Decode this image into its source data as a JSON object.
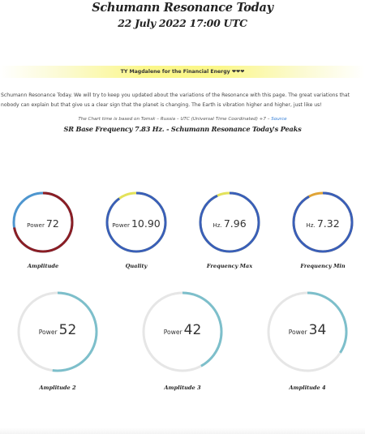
{
  "header": {
    "title": "Schumann Resonance Today",
    "date": "22 July 2022 17:00 UTC"
  },
  "banner": {
    "text": "TY Magdalene for the Financial Energy ❤❤❤"
  },
  "intro": {
    "text": "Schumann Resonance Today. We will try to keep you updated about the variations of the Resonance with this page. The great variations that nobody can explain but that give us a clear sign that the planet is changing. The Earth is vibration higher and higher, just like us!"
  },
  "note": {
    "text": "The Chart time is based on Tomsk – Russia – UTC (Universal Time Coordinated) +7 –",
    "link_label": "Source"
  },
  "subheading": "SR Base Frequency 7.83 Hz. - Schumann Resonance Today's Peaks",
  "colors": {
    "track": "#e6e6e6",
    "dark_red": "#8b1e24",
    "blue": "#3a5fb8",
    "light_blue": "#4e96cf",
    "yellow": "#e3e25a",
    "orange": "#e0a437",
    "teal": "#7dbfcb"
  },
  "gauges_top": [
    {
      "unit": "Power",
      "value": "72",
      "label": "Amplitude",
      "level": 0.72,
      "main_color": "#8b1e24",
      "rest_color": "#4e96cf"
    },
    {
      "unit": "Power",
      "value": "10.90",
      "label": "Quality",
      "level": 0.9,
      "main_color": "#3a5fb8",
      "rest_color": "#e3e25a"
    },
    {
      "unit": "Hz.",
      "value": "7.96",
      "label": "Frequency Max",
      "level": 0.93,
      "main_color": "#3a5fb8",
      "rest_color": "#e3e25a"
    },
    {
      "unit": "Hz.",
      "value": "7.32",
      "label": "Frequency Min",
      "level": 0.92,
      "main_color": "#3a5fb8",
      "rest_color": "#e0a437"
    }
  ],
  "gauges_bottom": [
    {
      "unit": "Power",
      "value": "52",
      "label": "Amplitude 2",
      "level": 0.52,
      "main_color": "#7dbfcb",
      "rest_color": "#e6e6e6"
    },
    {
      "unit": "Power",
      "value": "42",
      "label": "Amplitude 3",
      "level": 0.42,
      "main_color": "#7dbfcb",
      "rest_color": "#e6e6e6"
    },
    {
      "unit": "Power",
      "value": "34",
      "label": "Amplitude 4",
      "level": 0.34,
      "main_color": "#7dbfcb",
      "rest_color": "#e6e6e6"
    }
  ]
}
